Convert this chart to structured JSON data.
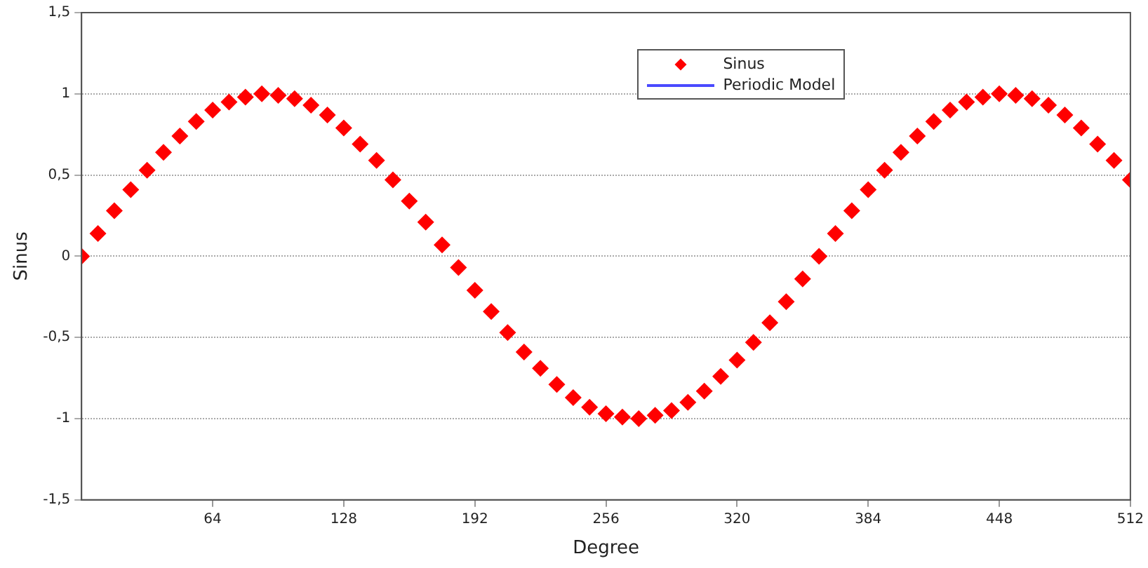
{
  "chart_data": {
    "type": "scatter",
    "xlabel": "Degree",
    "ylabel": "Sinus",
    "x": [
      0,
      8,
      16,
      24,
      32,
      40,
      48,
      56,
      64,
      72,
      80,
      88,
      96,
      104,
      112,
      120,
      128,
      136,
      144,
      152,
      160,
      168,
      176,
      184,
      192,
      200,
      208,
      216,
      224,
      232,
      240,
      248,
      256,
      264,
      272,
      280,
      288,
      296,
      304,
      312,
      320,
      328,
      336,
      344,
      352,
      360,
      368,
      376,
      384,
      392,
      400,
      408,
      416,
      424,
      432,
      440,
      448,
      456,
      464,
      472,
      480,
      488,
      496,
      504,
      512
    ],
    "series": [
      {
        "name": "Sinus",
        "color": "#ff0000",
        "marker": "diamond",
        "values": [
          0,
          0.14,
          0.28,
          0.41,
          0.53,
          0.64,
          0.74,
          0.83,
          0.9,
          0.95,
          0.98,
          1,
          0.99,
          0.97,
          0.93,
          0.87,
          0.79,
          0.69,
          0.59,
          0.47,
          0.34,
          0.21,
          0.07,
          -0.07,
          -0.21,
          -0.34,
          -0.47,
          -0.59,
          -0.69,
          -0.79,
          -0.87,
          -0.93,
          -0.97,
          -0.99,
          -1,
          -0.98,
          -0.95,
          -0.9,
          -0.83,
          -0.74,
          -0.64,
          -0.53,
          -0.41,
          -0.28,
          -0.14,
          0,
          0.14,
          0.28,
          0.41,
          0.53,
          0.64,
          0.74,
          0.83,
          0.9,
          0.95,
          0.98,
          1,
          0.99,
          0.97,
          0.93,
          0.87,
          0.79,
          0.69,
          0.59,
          0.47
        ]
      },
      {
        "name": "Periodic Model",
        "color": "#4a4aff",
        "type": "line",
        "values": [
          null,
          null,
          null,
          null,
          null,
          null,
          null,
          null,
          null,
          null,
          null,
          null,
          null,
          null,
          null,
          null,
          null,
          null,
          null,
          null,
          null,
          null,
          null,
          null,
          null,
          null,
          null,
          null,
          null,
          null,
          null,
          null,
          null,
          null,
          null,
          null,
          null,
          null,
          null,
          null,
          null,
          null,
          null,
          null,
          null,
          null,
          null,
          null,
          null,
          null,
          null,
          null,
          null,
          null,
          null,
          null,
          null,
          null,
          null,
          null,
          null,
          null,
          null,
          null,
          null
        ]
      }
    ],
    "xlim": [
      0,
      512
    ],
    "xticks": [
      64,
      128,
      192,
      256,
      320,
      384,
      448,
      512
    ],
    "ylim": [
      -1.5,
      1.5
    ],
    "yticks": [
      {
        "value": -1.5,
        "label": "-1,5"
      },
      {
        "value": -1,
        "label": "-1"
      },
      {
        "value": -0.5,
        "label": "-0,5"
      },
      {
        "value": 0,
        "label": "0"
      },
      {
        "value": 0.5,
        "label": "0,5"
      },
      {
        "value": 1,
        "label": "1"
      },
      {
        "value": 1.5,
        "label": "1,5"
      }
    ],
    "grid": "y",
    "legend": "top right"
  }
}
